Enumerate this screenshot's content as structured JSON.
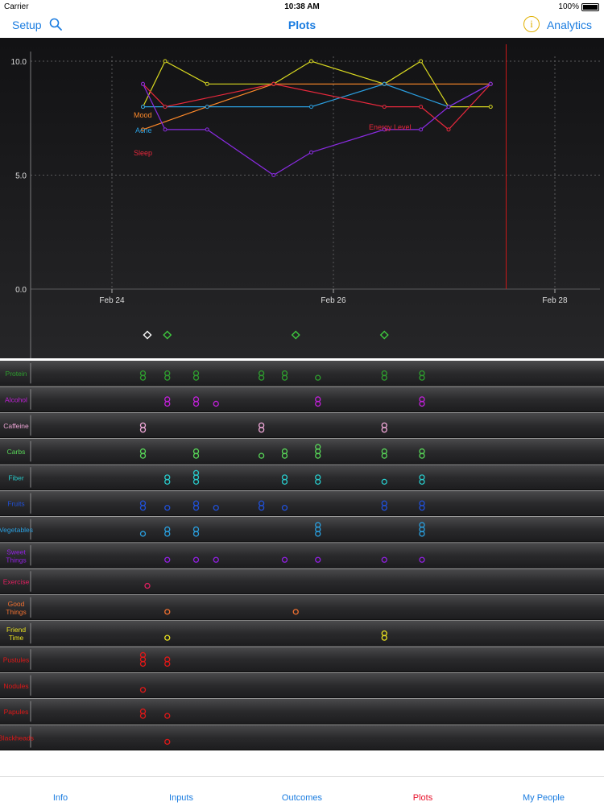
{
  "status_bar": {
    "carrier": "Carrier",
    "time": "10:38 AM",
    "battery": "100%"
  },
  "nav": {
    "left_label": "Setup",
    "title": "Plots",
    "right_label": "Analytics",
    "info_glyph": "i"
  },
  "colors": {
    "accent": "#1a7ce0",
    "active_tab": "#e8102a",
    "Mood": "#ff8a2a",
    "Sleep": "#e8283c",
    "Acne": "#2b9fe0",
    "Energy Level": "#e8283c",
    "Purple": "#8a2be2",
    "Yellow": "#d8d820"
  },
  "chart_data": {
    "type": "line",
    "x_ticks": [
      "Feb 24",
      "Feb 26",
      "Feb 28"
    ],
    "y_ticks": [
      "0.0",
      "5.0",
      "10.0"
    ],
    "ylim": [
      0,
      10
    ],
    "xlim_days": [
      23.5,
      28.4
    ],
    "grid": true,
    "series_labels": [
      {
        "text": "Mood",
        "color": "#ff8a2a"
      },
      {
        "text": "Acne",
        "color": "#2b9fe0"
      },
      {
        "text": "Sleep",
        "color": "#e8283c"
      },
      {
        "text": "Energy Level",
        "color": "#e8283c"
      }
    ],
    "series": [
      {
        "name": "",
        "color": "#d8d820",
        "points": [
          [
            24.28,
            8.0
          ],
          [
            24.48,
            10.0
          ],
          [
            24.86,
            9.0
          ],
          [
            25.46,
            9.0
          ],
          [
            25.8,
            10.0
          ],
          [
            26.46,
            9.0
          ],
          [
            26.79,
            10.0
          ],
          [
            27.04,
            8.0
          ],
          [
            27.42,
            8.0
          ]
        ]
      },
      {
        "name": "Mood",
        "color": "#ff8a2a",
        "points": [
          [
            24.28,
            7.0
          ],
          [
            24.86,
            8.0
          ],
          [
            25.46,
            9.0
          ],
          [
            26.46,
            9.0
          ],
          [
            27.42,
            9.0
          ]
        ]
      },
      {
        "name": "Acne",
        "color": "#2b9fe0",
        "points": [
          [
            24.28,
            8.0
          ],
          [
            24.86,
            8.0
          ],
          [
            25.8,
            8.0
          ],
          [
            26.46,
            9.0
          ],
          [
            27.04,
            8.0
          ],
          [
            27.42,
            9.0
          ]
        ]
      },
      {
        "name": "Sleep",
        "color": "#e8283c",
        "points": [
          [
            24.28,
            9.0
          ],
          [
            24.48,
            8.0
          ],
          [
            25.46,
            9.0
          ],
          [
            26.46,
            8.0
          ],
          [
            26.79,
            8.0
          ],
          [
            27.04,
            7.0
          ],
          [
            27.42,
            9.0
          ]
        ]
      },
      {
        "name": "",
        "color": "#8a2be2",
        "points": [
          [
            24.28,
            9.0
          ],
          [
            24.48,
            7.0
          ],
          [
            24.86,
            7.0
          ],
          [
            25.46,
            5.0
          ],
          [
            25.8,
            6.0
          ],
          [
            26.46,
            7.0
          ],
          [
            26.79,
            7.0
          ],
          [
            27.04,
            8.0
          ],
          [
            27.42,
            9.0
          ]
        ]
      }
    ],
    "marker_line_day": 27.56,
    "event_markers": [
      {
        "day": 24.32,
        "color": "#ffffff"
      },
      {
        "day": 24.5,
        "color": "#3ec83e"
      },
      {
        "day": 25.66,
        "color": "#3ec83e"
      },
      {
        "day": 26.46,
        "color": "#3ec83e"
      }
    ]
  },
  "rows": [
    {
      "label": [
        "Protein"
      ],
      "color": "#2e9e2e",
      "marks": [
        [
          24.28,
          2
        ],
        [
          24.5,
          2
        ],
        [
          24.76,
          2
        ],
        [
          25.35,
          2
        ],
        [
          25.56,
          2
        ],
        [
          25.86,
          1
        ],
        [
          26.46,
          2
        ],
        [
          26.8,
          2
        ]
      ]
    },
    {
      "label": [
        "Alcohol"
      ],
      "color": "#c020d8",
      "marks": [
        [
          24.5,
          2
        ],
        [
          24.76,
          2
        ],
        [
          24.94,
          1
        ],
        [
          25.86,
          2
        ],
        [
          26.8,
          2
        ]
      ]
    },
    {
      "label": [
        "Caffeine"
      ],
      "color": "#f0a8d8",
      "marks": [
        [
          24.28,
          2
        ],
        [
          25.35,
          2
        ],
        [
          26.46,
          2
        ]
      ]
    },
    {
      "label": [
        "Carbs"
      ],
      "color": "#58d858",
      "marks": [
        [
          24.28,
          2
        ],
        [
          24.76,
          2
        ],
        [
          25.35,
          1
        ],
        [
          25.56,
          2
        ],
        [
          25.86,
          3
        ],
        [
          26.46,
          2
        ],
        [
          26.8,
          2
        ]
      ]
    },
    {
      "label": [
        "Fiber"
      ],
      "color": "#28c8c8",
      "marks": [
        [
          24.5,
          2
        ],
        [
          24.76,
          3
        ],
        [
          25.56,
          2
        ],
        [
          25.86,
          2
        ],
        [
          26.46,
          1
        ],
        [
          26.8,
          2
        ]
      ]
    },
    {
      "label": [
        "Fruits"
      ],
      "color": "#2050d8",
      "marks": [
        [
          24.28,
          2
        ],
        [
          24.5,
          1
        ],
        [
          24.76,
          2
        ],
        [
          24.94,
          1
        ],
        [
          25.35,
          2
        ],
        [
          25.56,
          1
        ],
        [
          26.46,
          2
        ],
        [
          26.8,
          2
        ]
      ]
    },
    {
      "label": [
        "Vegetables"
      ],
      "color": "#2aa0e0",
      "marks": [
        [
          24.28,
          1
        ],
        [
          24.5,
          2
        ],
        [
          24.76,
          2
        ],
        [
          25.86,
          3
        ],
        [
          26.8,
          3
        ]
      ]
    },
    {
      "label": [
        "Sweet",
        "Things"
      ],
      "color": "#9020e0",
      "marks": [
        [
          24.5,
          1
        ],
        [
          24.76,
          1
        ],
        [
          24.94,
          1
        ],
        [
          25.56,
          1
        ],
        [
          25.86,
          1
        ],
        [
          26.46,
          1
        ],
        [
          26.8,
          1
        ]
      ]
    },
    {
      "label": [
        "Exercise"
      ],
      "color": "#e02060",
      "marks": [
        [
          24.32,
          1
        ]
      ]
    },
    {
      "label": [
        "Good",
        "Things"
      ],
      "color": "#f07030",
      "marks": [
        [
          24.5,
          1
        ],
        [
          25.66,
          1
        ]
      ]
    },
    {
      "label": [
        "Friend",
        "Time"
      ],
      "color": "#e8e020",
      "marks": [
        [
          24.5,
          1
        ],
        [
          26.46,
          2
        ]
      ]
    },
    {
      "label": [
        "Pustules"
      ],
      "color": "#e01818",
      "marks": [
        [
          24.28,
          3
        ],
        [
          24.5,
          2
        ]
      ]
    },
    {
      "label": [
        "Nodules"
      ],
      "color": "#e01818",
      "marks": [
        [
          24.28,
          1
        ]
      ]
    },
    {
      "label": [
        "Papules"
      ],
      "color": "#e01818",
      "marks": [
        [
          24.28,
          2
        ],
        [
          24.5,
          1
        ]
      ]
    },
    {
      "label": [
        "Blackheads"
      ],
      "color": "#e01818",
      "marks": [
        [
          24.5,
          1
        ]
      ]
    }
  ],
  "tabs": [
    {
      "label": "Info",
      "active": false
    },
    {
      "label": "Inputs",
      "active": false
    },
    {
      "label": "Outcomes",
      "active": false
    },
    {
      "label": "Plots",
      "active": true
    },
    {
      "label": "My People",
      "active": false
    }
  ]
}
